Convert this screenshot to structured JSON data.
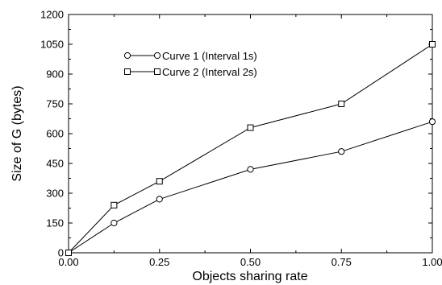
{
  "chart_data": {
    "type": "line",
    "title": "",
    "xlabel": "Objects sharing rate",
    "ylabel": "Size of G (bytes)",
    "xlim": [
      0,
      1
    ],
    "ylim": [
      0,
      1200
    ],
    "x_ticks": [
      0,
      0.25,
      0.5,
      0.75,
      1.0
    ],
    "x_tick_labels": [
      "0.00",
      "0.25",
      "0.50",
      "0.75",
      "1.00"
    ],
    "y_ticks": [
      0,
      150,
      300,
      450,
      600,
      750,
      900,
      1050,
      1200
    ],
    "y_tick_labels": [
      "0",
      "150",
      "300",
      "450",
      "600",
      "750",
      "900",
      "1050",
      "1200"
    ],
    "grid": false,
    "legend_position": "top-left",
    "series": [
      {
        "name": "Curve 1 (Interval 1s)",
        "marker": "circle",
        "color": "#000000",
        "x": [
          0,
          0.125,
          0.25,
          0.5,
          0.75,
          1.0
        ],
        "y": [
          0,
          150,
          270,
          420,
          510,
          660
        ]
      },
      {
        "name": "Curve 2 (Interval 2s)",
        "marker": "square",
        "color": "#000000",
        "x": [
          0,
          0.125,
          0.25,
          0.5,
          0.75,
          1.0
        ],
        "y": [
          0,
          240,
          360,
          630,
          750,
          1050
        ]
      }
    ]
  }
}
